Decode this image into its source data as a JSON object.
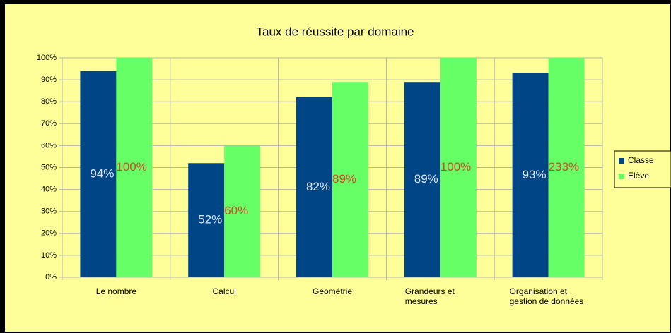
{
  "chart_data": {
    "type": "bar",
    "title": "Taux de réussite par domaine",
    "categories": [
      "Le nombre",
      "Calcul",
      "Géométrie",
      "Grandeurs et mesures",
      "Organisation et gestion de données"
    ],
    "series": [
      {
        "name": "Classe",
        "color": "#004586",
        "values": [
          94,
          52,
          82,
          89,
          93
        ],
        "value_labels": [
          "94%",
          "52%",
          "82%",
          "89%",
          "93%"
        ]
      },
      {
        "name": "Elève",
        "color": "#66ff66",
        "values": [
          100,
          60,
          89,
          100,
          233
        ],
        "value_labels": [
          "100%",
          "60%",
          "89%",
          "100%",
          "233%"
        ]
      }
    ],
    "ylim": [
      0,
      100
    ],
    "yticks": [
      {
        "value": 0,
        "label": "0%"
      },
      {
        "value": 10,
        "label": "10%"
      },
      {
        "value": 20,
        "label": "20%"
      },
      {
        "value": 30,
        "label": "30%"
      },
      {
        "value": 40,
        "label": "40%"
      },
      {
        "value": 50,
        "label": "50%"
      },
      {
        "value": 60,
        "label": "60%"
      },
      {
        "value": 70,
        "label": "70%"
      },
      {
        "value": 80,
        "label": "80%"
      },
      {
        "value": 90,
        "label": "90%"
      },
      {
        "value": 100,
        "label": "100%"
      }
    ],
    "grid": true,
    "legend": "right"
  }
}
